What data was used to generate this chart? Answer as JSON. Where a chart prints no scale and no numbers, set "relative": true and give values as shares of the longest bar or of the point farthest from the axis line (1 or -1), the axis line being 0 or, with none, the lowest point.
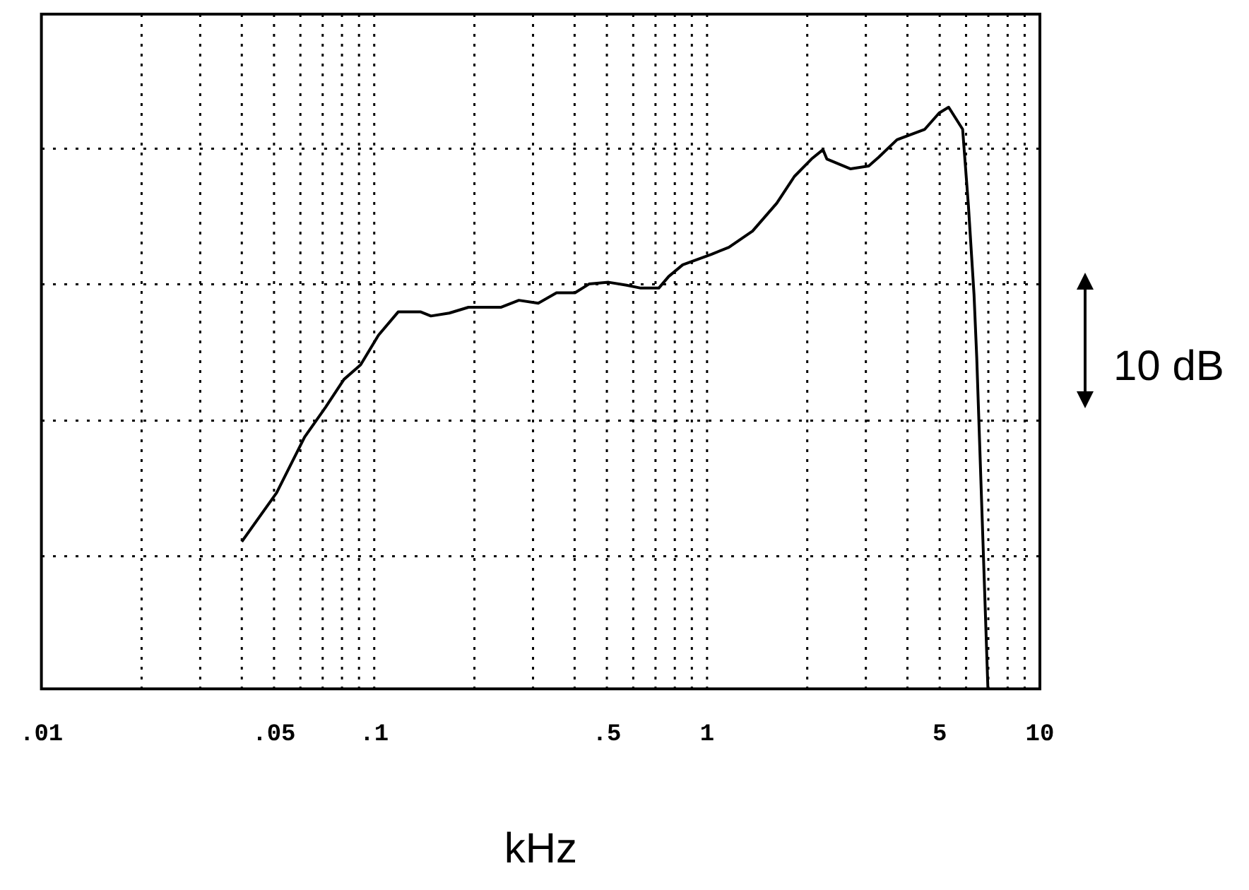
{
  "chart_data": {
    "type": "line",
    "xlabel": "kHz",
    "relative": true,
    "log": "x",
    "grid": true,
    "marker": "none",
    "line_style": "solid",
    "xlim": [
      0.01,
      10
    ],
    "xticks": [
      {
        "value": 0.01,
        "label": ".01"
      },
      {
        "value": 0.05,
        "label": ".05"
      },
      {
        "value": 0.1,
        "label": ".1"
      },
      {
        "value": 0.5,
        "label": ".5"
      },
      1,
      5,
      10
    ],
    "annotations": [
      "10 dB"
    ],
    "series": [
      {
        "color": "#000000",
        "x": [
          0.04,
          0.0509,
          0.0618,
          0.0714,
          0.0811,
          0.091,
          0.103,
          0.118,
          0.138,
          0.148,
          0.168,
          0.192,
          0.24,
          0.272,
          0.311,
          0.353,
          0.401,
          0.442,
          0.506,
          0.573,
          0.632,
          0.716,
          0.767,
          0.845,
          1.03,
          1.163,
          1.37,
          1.62,
          1.83,
          2.06,
          2.23,
          2.29,
          2.7,
          3.06,
          3.28,
          3.72,
          4.51,
          4.98,
          5.32,
          5.86,
          6.1,
          6.34,
          6.46,
          6.65,
          6.98
        ],
        "values": [
          0.253,
          0.337,
          0.433,
          0.484,
          0.532,
          0.557,
          0.608,
          0.648,
          0.648,
          0.641,
          0.646,
          0.656,
          0.656,
          0.668,
          0.663,
          0.681,
          0.681,
          0.696,
          0.699,
          0.694,
          0.689,
          0.689,
          0.709,
          0.729,
          0.747,
          0.759,
          0.787,
          0.835,
          0.881,
          0.911,
          0.927,
          0.911,
          0.894,
          0.899,
          0.914,
          0.944,
          0.962,
          0.99,
          1,
          0.962,
          0.83,
          0.678,
          0.57,
          0.357,
          0
        ]
      }
    ]
  }
}
